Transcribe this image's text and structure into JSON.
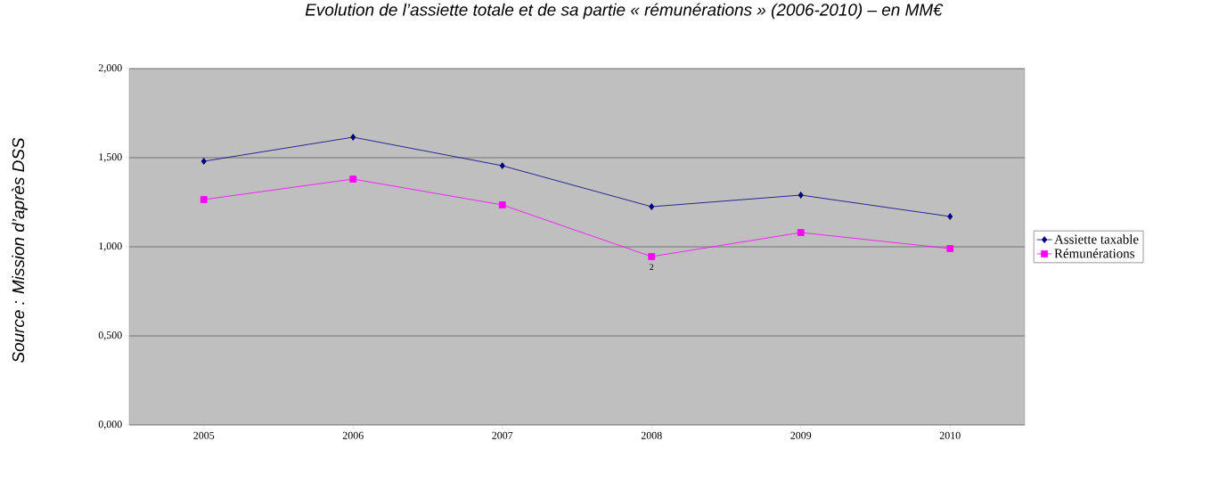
{
  "chart_data": {
    "type": "line",
    "title": "Evolution de l’assiette totale et de sa partie « rémunérations » (2006-2010) – en MM€",
    "categories": [
      "2005",
      "2006",
      "2007",
      "2008",
      "2009",
      "2010"
    ],
    "series": [
      {
        "name": "Assiette taxable",
        "color": "#000080",
        "marker": "diamond",
        "values": [
          1.48,
          1.615,
          1.455,
          1.225,
          1.29,
          1.17
        ]
      },
      {
        "name": "Rémunérations",
        "color": "#ff00ff",
        "marker": "square",
        "values": [
          1.265,
          1.38,
          1.235,
          0.945,
          1.08,
          0.99
        ]
      }
    ],
    "ylim": [
      0,
      2
    ],
    "yticks": [
      {
        "value": 0,
        "label": "0,000"
      },
      {
        "value": 0.5,
        "label": "0,500"
      },
      {
        "value": 1,
        "label": "1,000"
      },
      {
        "value": 1.5,
        "label": "1,500"
      },
      {
        "value": 2,
        "label": "2,000"
      }
    ],
    "grid": "y",
    "legend": "right",
    "annotations": [
      "Source : Mission d’après DSS",
      {
        "text": "2",
        "x": "2008",
        "y": 0.945
      }
    ]
  }
}
